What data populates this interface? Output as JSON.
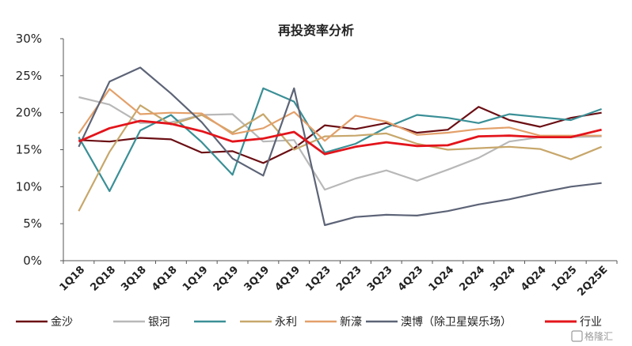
{
  "chart_data": {
    "type": "line",
    "title": "再投资率分析",
    "x": [
      "1Q18",
      "2Q18",
      "3Q18",
      "4Q18",
      "1Q19",
      "2Q19",
      "3Q19",
      "4Q19",
      "1Q23",
      "2Q23",
      "3Q23",
      "4Q23",
      "1Q24",
      "2Q24",
      "3Q24",
      "4Q24",
      "1Q25",
      "2Q25E"
    ],
    "ylim": [
      0,
      30
    ],
    "yticks": [
      "0%",
      "5%",
      "10%",
      "15%",
      "20%",
      "25%",
      "30%"
    ],
    "grid": false,
    "legend_position": "bottom",
    "series": [
      {
        "name": "金沙",
        "color": "#6b0f14",
        "values": [
          16.3,
          16.1,
          16.6,
          16.4,
          14.6,
          14.8,
          13.2,
          15.2,
          18.3,
          17.8,
          18.6,
          17.3,
          17.7,
          20.8,
          19.0,
          18.1,
          19.3,
          20.0
        ]
      },
      {
        "name": "银河",
        "color": "#b8b8b8",
        "values": [
          22.1,
          21.1,
          18.6,
          18.7,
          19.7,
          19.8,
          16.1,
          16.3,
          9.6,
          11.1,
          12.2,
          10.8,
          12.3,
          13.9,
          16.1,
          16.7,
          16.7,
          16.8
        ]
      },
      {
        "name": "",
        "color": "#3a8f96",
        "values": [
          16.7,
          9.4,
          17.6,
          19.7,
          16.0,
          11.6,
          23.3,
          21.5,
          14.6,
          15.8,
          18.0,
          19.7,
          19.3,
          18.6,
          19.8,
          19.4,
          19.0,
          20.5
        ]
      },
      {
        "name": "永利",
        "color": "#c7a76b",
        "values": [
          6.7,
          14.7,
          21.0,
          18.4,
          19.7,
          17.3,
          19.8,
          15.0,
          16.8,
          16.9,
          17.2,
          15.8,
          15.0,
          15.2,
          15.4,
          15.1,
          13.7,
          15.4
        ]
      },
      {
        "name": "新濠",
        "color": "#e3a06a",
        "values": [
          17.2,
          23.2,
          19.8,
          20.0,
          19.9,
          17.1,
          17.9,
          20.1,
          16.2,
          19.6,
          18.8,
          17.0,
          17.3,
          17.8,
          18.0,
          16.9,
          16.9,
          16.9
        ]
      },
      {
        "name": "澳博（除卫星娱乐场）",
        "color": "#5d6477",
        "values": [
          15.4,
          24.2,
          26.1,
          22.6,
          18.7,
          13.8,
          11.5,
          23.3,
          4.8,
          5.9,
          6.2,
          6.1,
          6.7,
          7.6,
          8.3,
          9.2,
          10.0,
          10.5
        ]
      },
      {
        "name": "行业",
        "color": "#e3141b",
        "values": [
          16.1,
          17.9,
          18.9,
          18.5,
          17.5,
          16.1,
          16.5,
          17.4,
          14.4,
          15.4,
          16.0,
          15.5,
          15.6,
          16.8,
          16.9,
          16.7,
          16.7,
          17.7
        ]
      }
    ]
  },
  "watermark": "格隆汇"
}
